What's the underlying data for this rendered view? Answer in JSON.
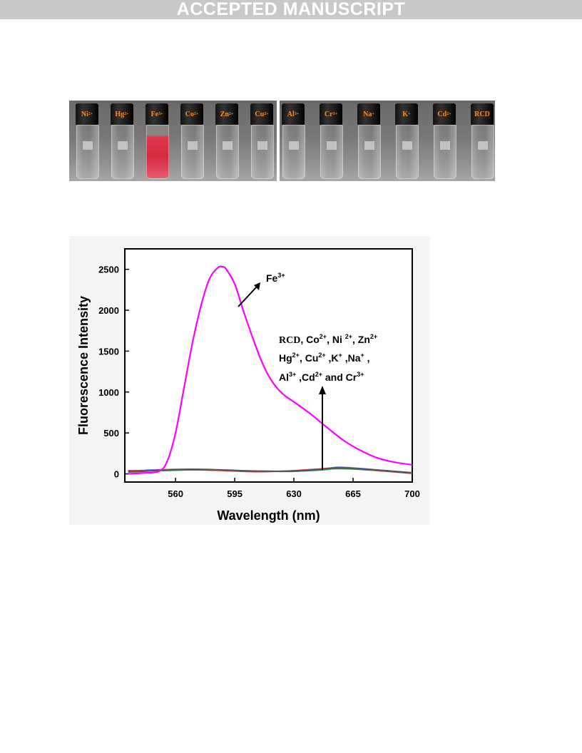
{
  "banner": {
    "text": "ACCEPTED MANUSCRIPT"
  },
  "photo": {
    "left_vials": [
      "Ni",
      "Hg",
      "Fe",
      "Co",
      "Zn",
      "Cu"
    ],
    "left_charges": [
      "2+",
      "2+",
      "3+",
      "2+",
      "2+",
      "2+"
    ],
    "right_vials": [
      "Al",
      "Cr",
      "Na",
      "K",
      "Cd",
      "RCD"
    ],
    "right_charges": [
      "3+",
      "3+",
      "+",
      "+",
      "2+",
      ""
    ],
    "highlight_color": "#d62a40"
  },
  "chart_data": {
    "type": "line",
    "xlabel": "Wavelength (nm)",
    "ylabel": "Fluorescence Intensity",
    "xlim": [
      530,
      700
    ],
    "ylim": [
      -100,
      2750
    ],
    "x_ticks": [
      560,
      595,
      630,
      665,
      700
    ],
    "y_ticks": [
      0,
      500,
      1000,
      1500,
      2000,
      2500
    ],
    "x_tick_labels": [
      "560",
      "595",
      "630",
      "665",
      "700"
    ],
    "y_tick_labels": [
      "0",
      "500",
      "1000",
      "1500",
      "2000",
      "2500"
    ],
    "series": [
      {
        "name": "Fe3+",
        "color": "#ff00ff",
        "x": [
          532,
          540,
          550,
          555,
          560,
          565,
          570,
          575,
          580,
          585,
          588,
          590,
          595,
          600,
          605,
          610,
          615,
          620,
          625,
          630,
          640,
          650,
          660,
          670,
          680,
          690,
          700
        ],
        "y": [
          0,
          10,
          30,
          150,
          500,
          1050,
          1600,
          2050,
          2380,
          2520,
          2530,
          2500,
          2320,
          2000,
          1700,
          1420,
          1200,
          1050,
          950,
          880,
          730,
          560,
          400,
          280,
          190,
          140,
          110
        ]
      },
      {
        "name": "RCD",
        "color": "#555555",
        "x": [
          532,
          550,
          570,
          590,
          610,
          630,
          645,
          655,
          665,
          680,
          700
        ],
        "y": [
          20,
          40,
          55,
          45,
          30,
          35,
          55,
          70,
          65,
          45,
          10
        ]
      },
      {
        "name": "Co2+",
        "color": "#e0301e",
        "x": [
          532,
          550,
          570,
          590,
          610,
          630,
          645,
          655,
          665,
          680,
          700
        ],
        "y": [
          28,
          45,
          50,
          38,
          25,
          40,
          60,
          75,
          68,
          40,
          5
        ]
      },
      {
        "name": "Ni2+",
        "color": "#2e5fd6",
        "x": [
          532,
          550,
          570,
          590,
          610,
          630,
          645,
          655,
          665,
          680,
          700
        ],
        "y": [
          35,
          50,
          58,
          48,
          32,
          30,
          50,
          80,
          72,
          48,
          15
        ]
      },
      {
        "name": "Zn2+",
        "color": "#1aa34a",
        "x": [
          532,
          550,
          570,
          590,
          610,
          630,
          645,
          655,
          665,
          680,
          700
        ],
        "y": [
          40,
          38,
          48,
          42,
          36,
          33,
          45,
          62,
          58,
          38,
          8
        ]
      },
      {
        "name": "Hg2+",
        "color": "#d98c1a",
        "x": [
          532,
          550,
          570,
          590,
          610,
          630,
          645,
          655,
          665,
          680,
          700
        ],
        "y": [
          32,
          46,
          52,
          44,
          28,
          38,
          52,
          68,
          64,
          44,
          12
        ]
      },
      {
        "name": "Cu2+",
        "color": "#8a3fb0",
        "x": [
          532,
          550,
          570,
          590,
          610,
          630,
          645,
          655,
          665,
          680,
          700
        ],
        "y": [
          25,
          42,
          56,
          40,
          30,
          36,
          58,
          72,
          60,
          42,
          6
        ]
      }
    ],
    "annotations": {
      "fe": {
        "base": "Fe",
        "sup": "3+"
      },
      "group_lines": [
        [
          [
            "RCD",
            ""
          ],
          [
            ", Co",
            "2+"
          ],
          [
            ", Ni ",
            "2+"
          ],
          [
            ", Zn",
            "2+"
          ]
        ],
        [
          [
            "Hg",
            "2+"
          ],
          [
            ", Cu",
            "2+"
          ],
          [
            " ,K",
            "+"
          ],
          [
            " ,Na",
            "+"
          ],
          [
            " ,",
            ""
          ]
        ],
        [
          [
            "Al",
            "3+"
          ],
          [
            " ,Cd",
            "2+"
          ],
          [
            " and Cr",
            "3+"
          ]
        ]
      ]
    }
  }
}
